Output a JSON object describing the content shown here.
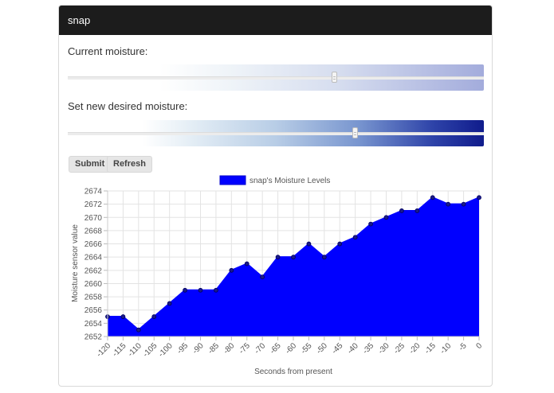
{
  "header": {
    "title": "snap"
  },
  "controls": {
    "current_label": "Current moisture:",
    "desired_label": "Set new desired moisture:",
    "current_value_pct": 64,
    "desired_value_pct": 69,
    "submit_label": "Submit",
    "refresh_label": "Refresh"
  },
  "colors": {
    "series": "#0000ff",
    "header_bg": "#1c1c1c"
  },
  "chart_data": {
    "type": "area",
    "legend": "snap's Moisture Levels",
    "xlabel": "Seconds from present",
    "ylabel": "Moisture sensor value",
    "ylim": [
      2652,
      2674
    ],
    "yticks": [
      "2674",
      "2672",
      "2670",
      "2668",
      "2666",
      "2664",
      "2662",
      "2660",
      "2658",
      "2656",
      "2654",
      "2652"
    ],
    "xticks": [
      "-120",
      "-115",
      "-110",
      "-105",
      "-100",
      "-95",
      "-90",
      "-85",
      "-80",
      "-75",
      "-70",
      "-65",
      "-60",
      "-55",
      "-50",
      "-45",
      "-40",
      "-35",
      "-30",
      "-25",
      "-20",
      "-15",
      "-10",
      "-5",
      "0"
    ],
    "x": [
      -120,
      -115,
      -110,
      -105,
      -100,
      -95,
      -90,
      -85,
      -80,
      -75,
      -70,
      -65,
      -60,
      -55,
      -50,
      -45,
      -40,
      -35,
      -30,
      -25,
      -20,
      -15,
      -10,
      -5,
      0
    ],
    "values": [
      2655,
      2655,
      2653,
      2655,
      2657,
      2659,
      2659,
      2659,
      2662,
      2663,
      2661,
      2664,
      2664,
      2666,
      2664,
      2666,
      2667,
      2669,
      2670,
      2671,
      2671,
      2673,
      2672,
      2672,
      2673
    ]
  }
}
